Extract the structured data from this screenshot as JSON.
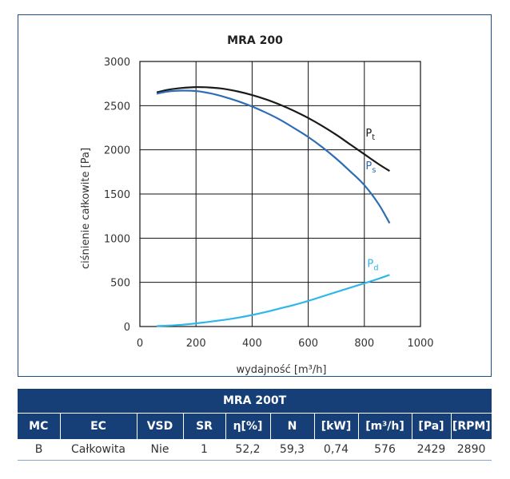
{
  "chart_data": {
    "type": "line",
    "title": "MRA 200",
    "xlabel": "wydajność [m³/h]",
    "ylabel": "ciśnienie całkowite [Pa]",
    "xlim": [
      0,
      1000
    ],
    "ylim": [
      0,
      3000
    ],
    "x_ticks": [
      "0",
      "200",
      "400",
      "600",
      "800",
      "1000"
    ],
    "y_ticks": [
      "0",
      "500",
      "1000",
      "1500",
      "2000",
      "2500",
      "3000"
    ],
    "grid": true,
    "series": [
      {
        "name": "P",
        "subscript": "t",
        "color": "#1a1a1a",
        "x": [
          60,
          100,
          150,
          200,
          250,
          300,
          350,
          400,
          450,
          500,
          550,
          600,
          650,
          700,
          750,
          800,
          850,
          890
        ],
        "y": [
          2650,
          2680,
          2700,
          2710,
          2705,
          2690,
          2660,
          2620,
          2570,
          2510,
          2440,
          2360,
          2270,
          2170,
          2060,
          1950,
          1840,
          1760
        ]
      },
      {
        "name": "P",
        "subscript": "s",
        "color": "#2e6db5",
        "x": [
          60,
          100,
          150,
          200,
          250,
          300,
          350,
          400,
          450,
          500,
          550,
          600,
          650,
          700,
          750,
          800,
          850,
          890
        ],
        "y": [
          2635,
          2660,
          2670,
          2665,
          2640,
          2600,
          2550,
          2490,
          2420,
          2340,
          2245,
          2145,
          2030,
          1900,
          1755,
          1600,
          1390,
          1170
        ]
      },
      {
        "name": "P",
        "subscript": "d",
        "color": "#2eb7e8",
        "x": [
          60,
          100,
          150,
          200,
          250,
          300,
          350,
          400,
          450,
          500,
          550,
          600,
          650,
          700,
          750,
          800,
          850,
          890
        ],
        "y": [
          5,
          10,
          20,
          35,
          55,
          75,
          100,
          130,
          165,
          205,
          245,
          290,
          340,
          390,
          440,
          490,
          540,
          585
        ]
      }
    ]
  },
  "table": {
    "title": "MRA 200T",
    "headers": [
      "MC",
      "EC",
      "VSD",
      "SR",
      "η[%]",
      "N",
      "[kW]",
      "[m³/h]",
      "[Pa]",
      "[RPM]"
    ],
    "row": [
      "B",
      "Całkowita",
      "Nie",
      "1",
      "52,2",
      "59,3",
      "0,74",
      "576",
      "2429",
      "2890"
    ]
  }
}
